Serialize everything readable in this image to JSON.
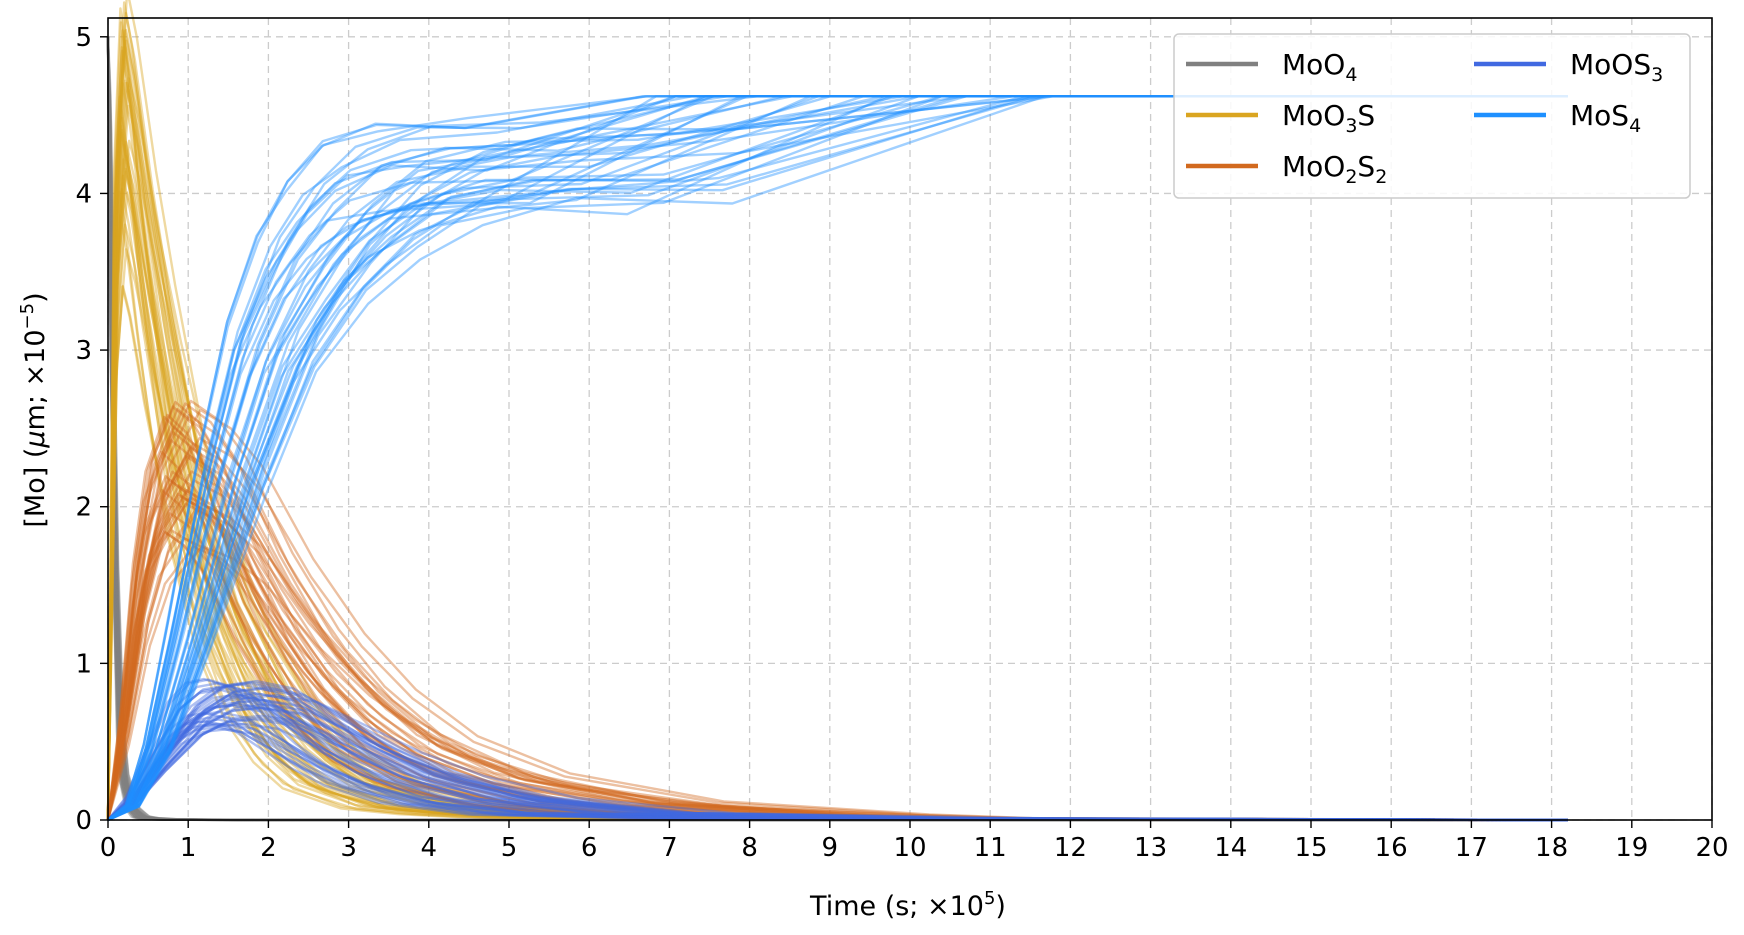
{
  "chart_data": {
    "type": "line",
    "xlabel_text": "Time (s; ×10",
    "xlabel_exp": "5",
    "xlabel_close": ")",
    "ylabel_text": "[Mo] (",
    "ylabel_mu": "μ",
    "ylabel_mid": "m; ×10",
    "ylabel_exp": "−5",
    "ylabel_close": ")",
    "xlim": [
      0,
      20
    ],
    "ylim": [
      0,
      5.12
    ],
    "xticks": [
      "0",
      "1",
      "2",
      "3",
      "4",
      "5",
      "6",
      "7",
      "8",
      "9",
      "10",
      "11",
      "12",
      "13",
      "14",
      "15",
      "16",
      "17",
      "18",
      "19",
      "20"
    ],
    "yticks": [
      "0",
      "1",
      "2",
      "3",
      "4",
      "5"
    ],
    "grid": true,
    "legend_placement": "top-right",
    "legend_columns": 2,
    "ensemble_runs_per_species": 40,
    "series": [
      {
        "key": "MoO4",
        "base": "MoO",
        "sub1": "4",
        "mid": "",
        "sub2": "",
        "color": "#808080",
        "x": [
          0,
          0.03,
          0.07,
          0.1,
          0.15,
          0.2,
          0.3,
          0.4,
          0.5,
          0.7,
          1.0,
          2.0,
          18.2
        ],
        "y": [
          5.0,
          3.8,
          2.4,
          1.4,
          0.55,
          0.25,
          0.07,
          0.02,
          0.01,
          0.004,
          0.002,
          0.0,
          0.0
        ]
      },
      {
        "key": "MoO3S",
        "base": "MoO",
        "sub1": "3",
        "mid": "S",
        "sub2": "",
        "color": "#DAA520",
        "x": [
          0,
          0.1,
          0.2,
          0.3,
          0.5,
          0.7,
          1.0,
          1.5,
          2.0,
          2.5,
          3.0,
          4.0,
          5.0,
          6.0,
          8.0,
          18.2
        ],
        "y": [
          0,
          3.5,
          4.35,
          4.1,
          3.4,
          2.8,
          2.0,
          1.2,
          0.7,
          0.4,
          0.22,
          0.08,
          0.04,
          0.02,
          0.01,
          0.0
        ]
      },
      {
        "key": "MoO2S2",
        "base": "MoO",
        "sub1": "2",
        "mid": "S",
        "sub2": "2",
        "color": "#D2691E",
        "x": [
          0,
          0.2,
          0.4,
          0.6,
          0.9,
          1.2,
          1.5,
          2.0,
          2.5,
          3.0,
          3.6,
          4.5,
          6.0,
          8.0,
          9.0,
          18.2
        ],
        "y": [
          0,
          0.6,
          1.4,
          1.9,
          2.2,
          2.1,
          1.9,
          1.4,
          1.0,
          0.7,
          0.45,
          0.25,
          0.1,
          0.03,
          0.01,
          0.0
        ]
      },
      {
        "key": "MoOS3",
        "base": "MoOS",
        "sub1": "3",
        "mid": "",
        "sub2": "",
        "color": "#4169E1",
        "x": [
          0,
          0.3,
          0.6,
          1.0,
          1.3,
          1.6,
          2.0,
          2.5,
          3.0,
          3.6,
          4.5,
          6.0,
          9.0,
          18.2
        ],
        "y": [
          0,
          0.12,
          0.35,
          0.62,
          0.72,
          0.74,
          0.7,
          0.55,
          0.4,
          0.26,
          0.13,
          0.04,
          0.01,
          0.0
        ]
      },
      {
        "key": "MoS4",
        "base": "MoS",
        "sub1": "4",
        "mid": "",
        "sub2": "",
        "color": "#1E90FF",
        "x": [
          0,
          0.3,
          0.6,
          1.0,
          1.5,
          2.0,
          2.5,
          3.0,
          3.6,
          4.5,
          6.0,
          9.0,
          18.2
        ],
        "y": [
          0,
          0.1,
          0.5,
          1.3,
          2.4,
          3.3,
          3.85,
          4.2,
          4.45,
          4.58,
          4.61,
          4.62,
          4.62
        ]
      }
    ]
  }
}
